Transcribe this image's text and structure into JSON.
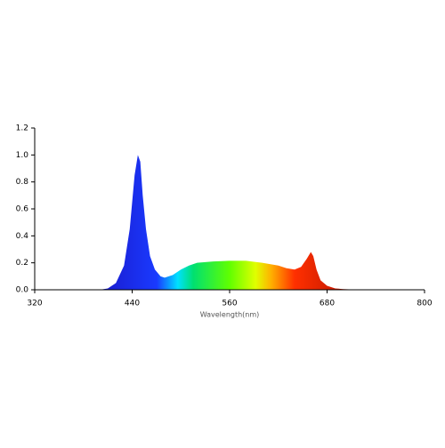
{
  "chart_data": {
    "type": "area",
    "x_label": "Wavelength(nm)",
    "x": [
      400,
      410,
      420,
      430,
      437,
      443,
      447,
      450,
      453,
      457,
      462,
      468,
      475,
      480,
      490,
      500,
      510,
      520,
      540,
      560,
      580,
      600,
      620,
      630,
      640,
      648,
      655,
      660,
      663,
      667,
      672,
      680,
      690,
      700,
      720
    ],
    "values": [
      0,
      0.01,
      0.05,
      0.18,
      0.45,
      0.85,
      1.0,
      0.95,
      0.7,
      0.45,
      0.25,
      0.15,
      0.1,
      0.09,
      0.11,
      0.15,
      0.18,
      0.2,
      0.21,
      0.215,
      0.215,
      0.2,
      0.18,
      0.16,
      0.15,
      0.17,
      0.23,
      0.28,
      0.25,
      0.15,
      0.07,
      0.03,
      0.01,
      0.005,
      0
    ],
    "xlim": [
      320,
      800
    ],
    "xticks": [
      320,
      440,
      560,
      680,
      800
    ],
    "ylim": [
      0,
      1.2
    ],
    "yticks": [
      {
        "value": 0,
        "label": "0.0"
      },
      0.2,
      0.4,
      0.6,
      0.8,
      {
        "value": 1,
        "label": "1.0"
      },
      1.2
    ],
    "grid": false
  }
}
